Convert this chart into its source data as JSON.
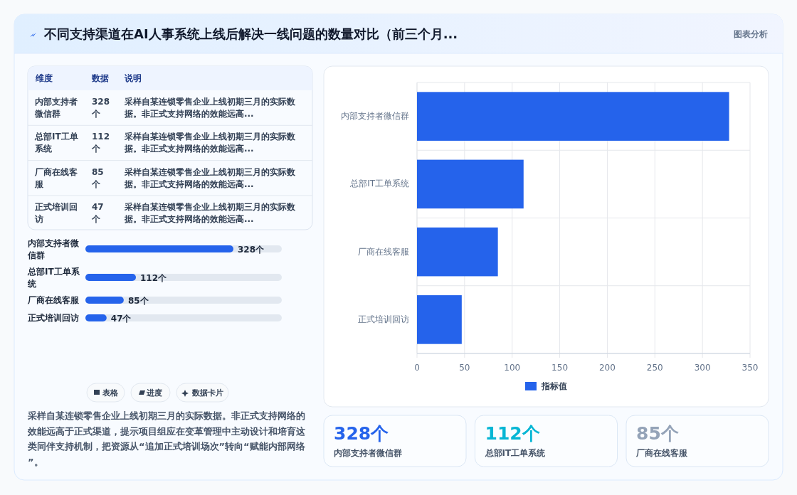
{
  "chart_data": [
    {
      "type": "other",
      "title": "不同支持渠道在AI人事系统上线后解决一线问题的数量对比（前三个月...",
      "subtitle": "图表分析"
    },
    {
      "type": "other",
      "categories": [
        "内部支持者微信群",
        "总部IT工单系统",
        "厂商在线客服",
        "正式培训回访"
      ],
      "value_labels": [
        "328个",
        "112个",
        "85个",
        "47个"
      ],
      "annotations": [
        "维度",
        "数据",
        "说明",
        "采样自某连锁零售企业上线初期三月的实际数据。非正式支持网络的效能远高...",
        "采样自某连锁零售企业上线初期三月的实际数据。非正式支持网络的效能远高...",
        "采样自某连锁零售企业上线初期三月的实际数据。非正式支持网络的效能远高...",
        "采样自某连锁零售企业上线初期三月的实际数据。非正式支持网络的效能远高..."
      ]
    },
    {
      "type": "bar",
      "orientation": "horizontal",
      "categories": [
        "内部支持者微信群",
        "总部IT工单系统",
        "厂商在线客服",
        "正式培训回访"
      ],
      "values": [
        328,
        112,
        85,
        47
      ],
      "value_labels": [
        "328个",
        "112个",
        "85个",
        "47个"
      ],
      "color": "#2563eb",
      "tick_labels": "y"
    },
    {
      "type": "other",
      "annotations": [
        "表格",
        "进度",
        "数据卡片",
        "采样自某连锁零售企业上线初期三月的实际数据。非正式支持网络的效能远高于正式渠道，提示项目组应在变革管理中主动设计和培育这类同伴支持机制，把资源从“追加正式培训场次”转向“赋能内部网络”。"
      ]
    },
    {
      "type": "bar",
      "orientation": "horizontal",
      "categories": [
        "内部支持者微信群",
        "总部IT工单系统",
        "厂商在线客服",
        "正式培训回访"
      ],
      "series": [
        {
          "name": "指标值",
          "color": "#2563eb",
          "values": [
            328,
            112,
            85,
            47
          ]
        }
      ],
      "xlim": [
        0,
        350
      ],
      "xticks": [
        0,
        50,
        100,
        150,
        200,
        250,
        300,
        350
      ],
      "grid": true,
      "legend": "bottom"
    },
    {
      "type": "other",
      "categories": [
        "内部支持者微信群",
        "总部IT工单系统",
        "厂商在线客服"
      ],
      "value_labels": [
        "328个",
        "112个",
        "85个"
      ]
    }
  ]
}
